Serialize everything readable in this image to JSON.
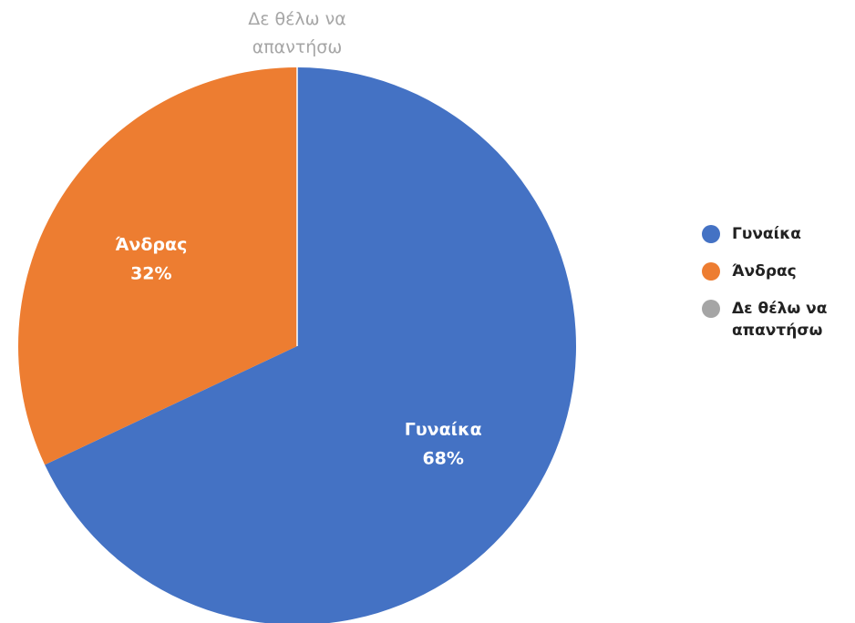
{
  "chart_data": {
    "type": "pie",
    "title": "",
    "categories": [
      "Γυναίκα",
      "Άνδρας",
      "Δε θέλω να απαντήσω"
    ],
    "values": [
      68,
      32,
      0
    ],
    "value_labels": [
      "68%",
      "32%",
      ""
    ],
    "colors": [
      "#4472c4",
      "#ed7d31",
      "#a5a5a5"
    ],
    "legend_position": "right",
    "outside_label": "Δε θέλω να απαντήσω"
  }
}
